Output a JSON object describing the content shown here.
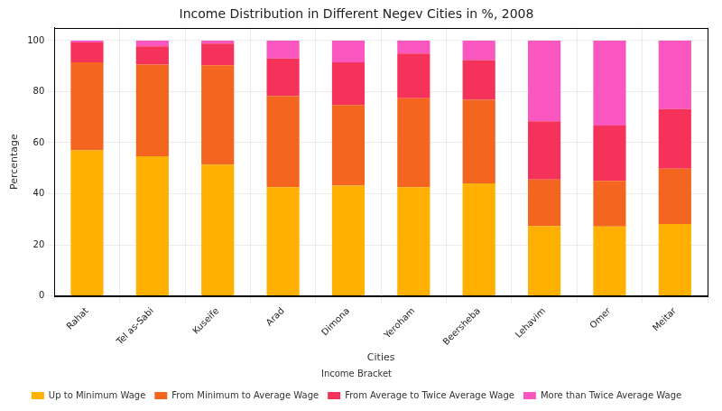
{
  "chart_data": {
    "type": "bar",
    "title": "Income Distribution in Different Negev Cities in %, 2008",
    "x_label": "Cities",
    "y_label": "Percentage",
    "categories": [
      "Rahat",
      "Tel as-Sabi",
      "Kuseife",
      "Arad",
      "Dimona",
      "Yeroham",
      "Beersheba",
      "Lehavim",
      "Omer",
      "Meitar"
    ],
    "series": [
      {
        "name": "Up to Minimum Wage",
        "color": "#ffb000",
        "values": [
          57.0,
          54.7,
          51.4,
          42.6,
          43.2,
          42.6,
          44.1,
          27.3,
          27.2,
          28.1
        ]
      },
      {
        "name": "From Minimum to Average Wage",
        "color": "#f4661f",
        "values": [
          34.5,
          35.9,
          38.9,
          35.7,
          31.6,
          34.8,
          32.7,
          18.3,
          17.8,
          21.7
        ]
      },
      {
        "name": "From Average to Twice Average Wage",
        "color": "#f5325a",
        "values": [
          7.8,
          7.2,
          8.5,
          14.7,
          16.7,
          17.5,
          15.6,
          22.8,
          21.7,
          23.4
        ]
      },
      {
        "name": "More than Twice Average Wage",
        "color": "#f956c0",
        "values": [
          0.7,
          2.2,
          1.2,
          7.0,
          8.5,
          5.1,
          7.6,
          31.6,
          33.3,
          26.8
        ]
      }
    ],
    "stacked": true,
    "ylim": [
      0,
      105
    ],
    "yticks": [
      0,
      20,
      40,
      60,
      80,
      100
    ],
    "grid": true,
    "legend": "bottom",
    "legend_title": "Income Bracket"
  }
}
